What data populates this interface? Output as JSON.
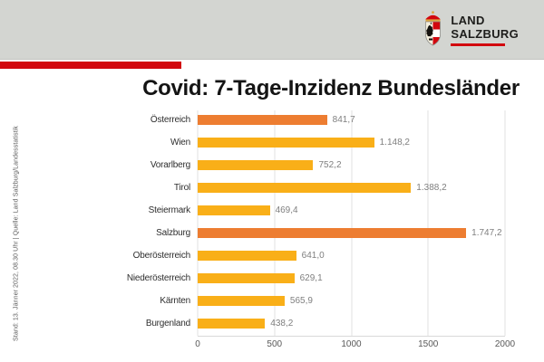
{
  "header": {
    "logo_line1": "LAND",
    "logo_line2": "SALZBURG",
    "brand_red": "#d2070e",
    "band_color": "#d3d5d1"
  },
  "side_note": "Stand: 13. Jänner 2022, 08.30 Uhr | Quelle: Land Salzburg/Landesstatistik",
  "chart_data": {
    "type": "bar",
    "orientation": "horizontal",
    "title": "Covid: 7-Tage-Inzidenz Bundesländer",
    "categories": [
      "Österreich",
      "Wien",
      "Vorarlberg",
      "Tirol",
      "Steiermark",
      "Salzburg",
      "Oberösterreich",
      "Niederösterreich",
      "Kärnten",
      "Burgenland"
    ],
    "values": [
      841.7,
      1148.2,
      752.2,
      1388.2,
      469.4,
      1747.2,
      641.0,
      629.1,
      565.9,
      438.2
    ],
    "value_labels": [
      "841,7",
      "1.148,2",
      "752,2",
      "1.388,2",
      "469,4",
      "1.747,2",
      "641,0",
      "629,1",
      "565,9",
      "438,2"
    ],
    "highlight_categories": [
      "Österreich",
      "Salzburg"
    ],
    "xlim": [
      0,
      2000
    ],
    "x_ticks": [
      0,
      500,
      1000,
      1500,
      2000
    ],
    "grid": true,
    "legend": false,
    "colors": {
      "bar_default": "#F9AF18",
      "bar_highlight": "#ED7D31",
      "category_label": "#2e2e2e",
      "value_label": "#7f7f7f",
      "tick_label": "#595959",
      "gridline": "#e0e0e0"
    }
  }
}
